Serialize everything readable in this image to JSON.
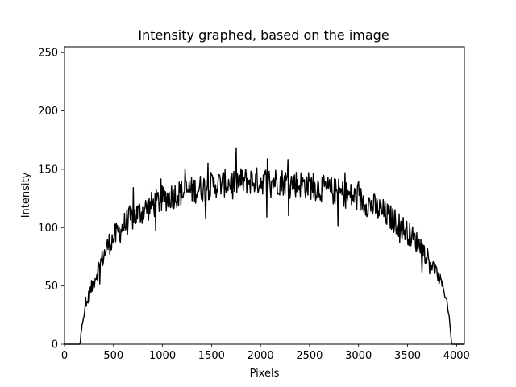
{
  "chart_data": {
    "type": "line",
    "title": "Intensity graphed, based on the image",
    "xlabel": "Pixels",
    "ylabel": "Intensity",
    "xlim": [
      0,
      4080
    ],
    "ylim": [
      0,
      255
    ],
    "grid": false,
    "x_ticks": [
      0,
      500,
      1000,
      1500,
      2000,
      2500,
      3000,
      3500,
      4000
    ],
    "y_ticks": [
      0,
      50,
      100,
      150,
      200,
      250
    ],
    "series": [
      {
        "color": "#000000",
        "x": [
          0,
          160,
          175,
          250,
          350,
          450,
          550,
          650,
          750,
          850,
          950,
          1050,
          1150,
          1250,
          1350,
          1450,
          1550,
          1650,
          1750,
          1850,
          1950,
          2050,
          2150,
          2250,
          2350,
          2450,
          2550,
          2650,
          2750,
          2850,
          2950,
          3050,
          3150,
          3250,
          3350,
          3450,
          3550,
          3650,
          3750,
          3850,
          3900,
          3930,
          3950,
          4080
        ],
        "y": [
          0,
          0,
          18,
          42,
          66,
          86,
          96,
          106,
          112,
          117,
          122,
          126,
          129,
          131,
          133,
          135,
          137,
          138,
          139,
          140,
          140,
          140,
          140,
          139,
          138,
          137,
          135,
          133,
          131,
          129,
          126,
          123,
          118,
          113,
          107,
          100,
          92,
          82,
          68,
          52,
          38,
          20,
          0,
          0
        ],
        "noise": [
          0,
          0,
          3,
          6,
          8,
          10,
          11,
          12,
          12,
          12,
          12,
          12,
          12,
          12,
          12,
          12,
          12,
          12,
          12,
          12,
          12,
          12,
          12,
          12,
          12,
          12,
          12,
          12,
          12,
          12,
          12,
          12,
          12,
          12,
          11,
          11,
          10,
          9,
          7,
          5,
          3,
          1,
          0,
          0
        ]
      }
    ]
  }
}
